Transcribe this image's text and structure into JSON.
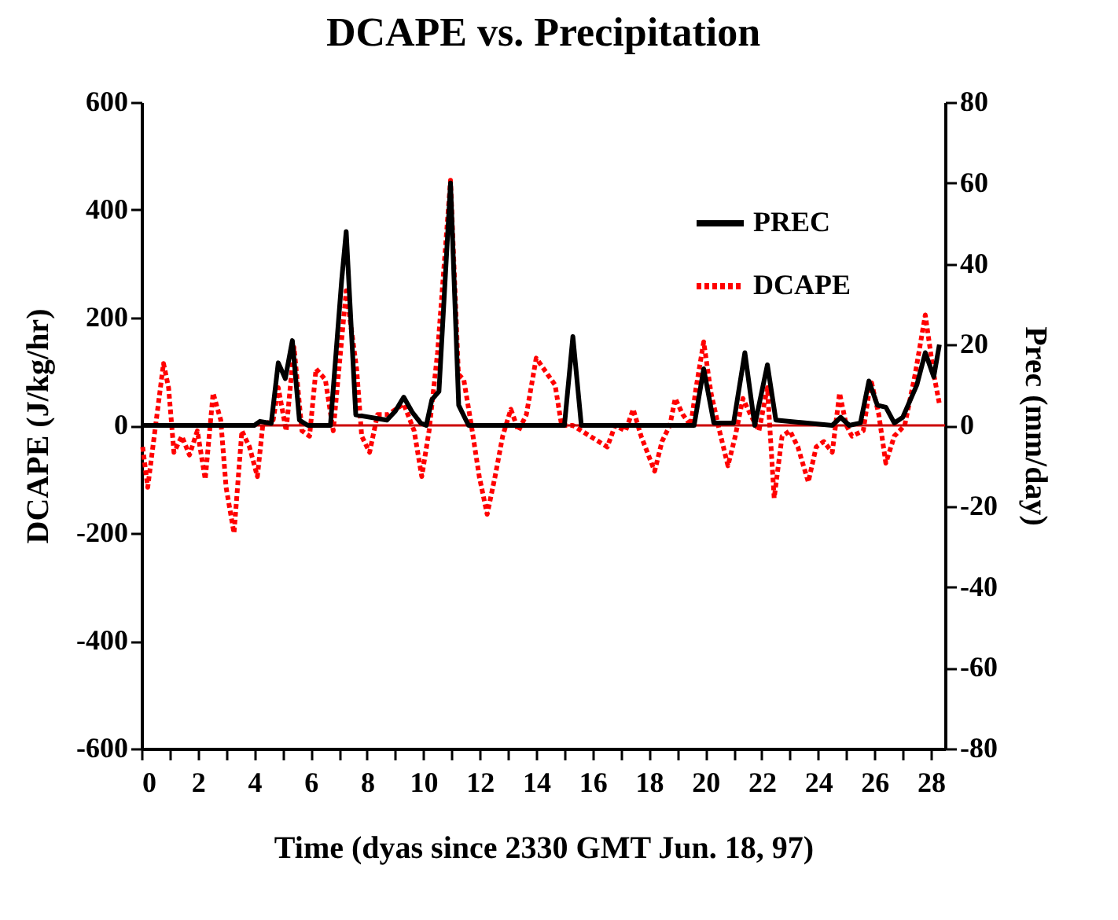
{
  "chart_data": {
    "type": "line",
    "title": "DCAPE vs. Precipitation",
    "xlabel": "Time (dyas since 2330 GMT Jun. 18, 97)",
    "ylabel": "DCAPE (J/kg/hr)",
    "y2label": "Prec (mm/day)",
    "xlim": [
      0,
      28.5
    ],
    "xticks": [
      0,
      {
        "value": 1,
        "label": null
      },
      2,
      {
        "value": 3,
        "label": null
      },
      4,
      {
        "value": 5,
        "label": null
      },
      6,
      {
        "value": 7,
        "label": null
      },
      8,
      {
        "value": 9,
        "label": null
      },
      10,
      {
        "value": 11,
        "label": null
      },
      12,
      {
        "value": 13,
        "label": null
      },
      14,
      {
        "value": 15,
        "label": null
      },
      16,
      {
        "value": 17,
        "label": null
      },
      18,
      {
        "value": 19,
        "label": null
      },
      20,
      {
        "value": 21,
        "label": null
      },
      22,
      {
        "value": 23,
        "label": null
      },
      24,
      {
        "value": 25,
        "label": null
      },
      26,
      {
        "value": 27,
        "label": null
      },
      28
    ],
    "ylim": [
      -600,
      600
    ],
    "yticks": [
      -600,
      -400,
      -200,
      0,
      200,
      400,
      600
    ],
    "y2lim": [
      -80,
      80
    ],
    "y2ticks": [
      -80,
      -60,
      -40,
      -20,
      0,
      20,
      40,
      60,
      80
    ],
    "grid": false,
    "legend": "top right",
    "marker": "none",
    "ref_lines": [
      {
        "axis": "y",
        "value": 0,
        "color": "#cc0000",
        "line_style": "solid"
      }
    ],
    "series": [
      {
        "name": "PREC",
        "color": "#000000",
        "axis": "y2",
        "line_style": "solid",
        "x": [
          0,
          4.0,
          4.2,
          4.6,
          4.85,
          5.1,
          5.35,
          5.6,
          5.9,
          6.7,
          7.1,
          7.26,
          7.6,
          8.7,
          9.0,
          9.3,
          9.6,
          9.9,
          10.1,
          10.3,
          10.55,
          10.96,
          11.25,
          11.6,
          15.0,
          15.3,
          15.6,
          19.6,
          19.94,
          20.3,
          21.0,
          21.4,
          21.75,
          22.2,
          22.5,
          24.5,
          24.8,
          25.1,
          25.5,
          25.8,
          26.1,
          26.4,
          26.7,
          27.0,
          27.5,
          27.8,
          28.1,
          28.3
        ],
        "values": [
          0,
          0,
          1,
          0.5,
          15.5,
          11.6,
          21,
          1.3,
          0,
          0,
          36,
          48,
          2.6,
          1.3,
          3.5,
          7,
          3.3,
          0.6,
          0,
          6.4,
          8.4,
          60,
          5,
          0,
          0,
          22,
          0,
          0,
          14,
          0.6,
          0.6,
          18,
          0,
          15,
          1.3,
          0,
          2,
          0,
          0.6,
          11,
          5,
          4.5,
          0.6,
          2,
          10,
          18,
          12,
          20
        ]
      },
      {
        "name": "DCAPE",
        "color": "#ff0000",
        "axis": "y",
        "line_style": "dotted",
        "x": [
          0.04,
          0.22,
          0.5,
          0.78,
          0.96,
          1.15,
          1.43,
          1.7,
          1.98,
          2.26,
          2.54,
          2.81,
          3.0,
          3.28,
          3.56,
          3.83,
          4.11,
          4.3,
          4.67,
          4.85,
          5.13,
          5.41,
          5.69,
          5.96,
          6.19,
          6.52,
          6.8,
          7.26,
          7.63,
          7.81,
          8.09,
          8.37,
          8.74,
          9.3,
          9.67,
          9.94,
          10.2,
          10.5,
          10.96,
          11.24,
          11.43,
          11.7,
          11.98,
          12.26,
          12.54,
          12.81,
          13.1,
          13.37,
          13.65,
          14.0,
          14.4,
          14.67,
          14.9,
          15.3,
          16.52,
          16.8,
          17.17,
          17.44,
          17.72,
          18.2,
          18.46,
          18.74,
          18.93,
          19.2,
          19.48,
          19.67,
          19.94,
          20.2,
          20.5,
          20.8,
          21.06,
          21.33,
          21.6,
          21.9,
          22.2,
          22.44,
          22.72,
          23.0,
          23.28,
          23.65,
          23.93,
          24.2,
          24.5,
          24.76,
          25.0,
          25.2,
          25.6,
          25.87,
          26.15,
          26.4,
          26.7,
          27.07,
          27.44,
          27.8,
          28.1,
          28.3
        ],
        "values": [
          -40,
          -115,
          0,
          115,
          70,
          -50,
          -20,
          -55,
          -10,
          -100,
          60,
          10,
          -115,
          -200,
          -10,
          -40,
          -95,
          0,
          10,
          70,
          -10,
          145,
          -10,
          -20,
          105,
          85,
          -10,
          250,
          105,
          -20,
          -50,
          20,
          20,
          40,
          -10,
          -95,
          -10,
          135,
          455,
          95,
          85,
          0,
          -95,
          -165,
          -95,
          -20,
          30,
          -10,
          20,
          125,
          95,
          75,
          0,
          0,
          -40,
          0,
          -10,
          30,
          -20,
          -85,
          -30,
          0,
          50,
          20,
          0,
          70,
          155,
          60,
          -10,
          -75,
          -20,
          50,
          20,
          -10,
          70,
          -135,
          -20,
          -10,
          -40,
          -105,
          -40,
          -30,
          -50,
          60,
          0,
          -20,
          -10,
          85,
          20,
          -70,
          -20,
          0,
          95,
          205,
          95,
          40
        ]
      }
    ]
  }
}
